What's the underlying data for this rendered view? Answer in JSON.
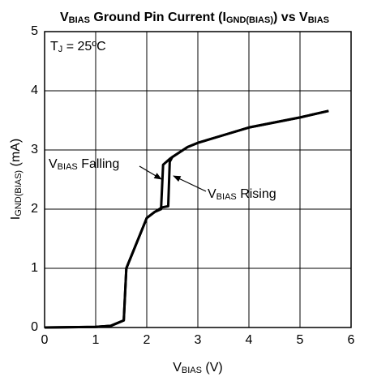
{
  "chart_data": {
    "type": "line",
    "title": [
      "V",
      "BIAS",
      " Ground Pin Current (I",
      "GND(BIAS)",
      ") vs V",
      "BIAS"
    ],
    "x_label": [
      "V",
      "BIAS",
      " (V)"
    ],
    "y_label": [
      "I",
      "GND(BIAS)",
      " (mA)"
    ],
    "annotations": [
      [
        "T",
        "J",
        " = 25ºC"
      ],
      [
        "V",
        "BIAS",
        " Falling"
      ],
      [
        "V",
        "BIAS",
        " Rising"
      ]
    ],
    "series": [
      {
        "color": "#000000",
        "x": [
          0,
          1,
          1.3,
          1.55,
          1.6,
          2.0,
          2.15,
          2.3,
          2.42,
          2.45,
          2.5,
          2.8,
          3.0,
          3.5,
          4.0,
          5.0,
          5.56
        ],
        "values": [
          0,
          0.01,
          0.03,
          0.12,
          1.0,
          1.85,
          1.95,
          2.03,
          2.05,
          2.8,
          2.88,
          3.05,
          3.12,
          3.25,
          3.38,
          3.55,
          3.66
        ]
      },
      {
        "color": "#000000",
        "x": [
          0,
          1,
          1.3,
          1.55,
          1.6,
          2.0,
          2.15,
          2.28,
          2.32,
          2.45,
          2.5,
          2.8,
          3.0,
          3.5,
          4.0,
          5.0,
          5.56
        ],
        "values": [
          0,
          0.01,
          0.03,
          0.12,
          1.0,
          1.85,
          1.95,
          2.0,
          2.75,
          2.85,
          2.88,
          3.05,
          3.12,
          3.25,
          3.38,
          3.55,
          3.66
        ]
      }
    ],
    "xlim": [
      0,
      6
    ],
    "xticks": [
      0,
      1,
      2,
      3,
      4,
      5,
      6
    ],
    "ylim": [
      0,
      5
    ],
    "yticks": [
      0,
      1,
      2,
      3,
      4,
      5
    ],
    "grid": true
  }
}
